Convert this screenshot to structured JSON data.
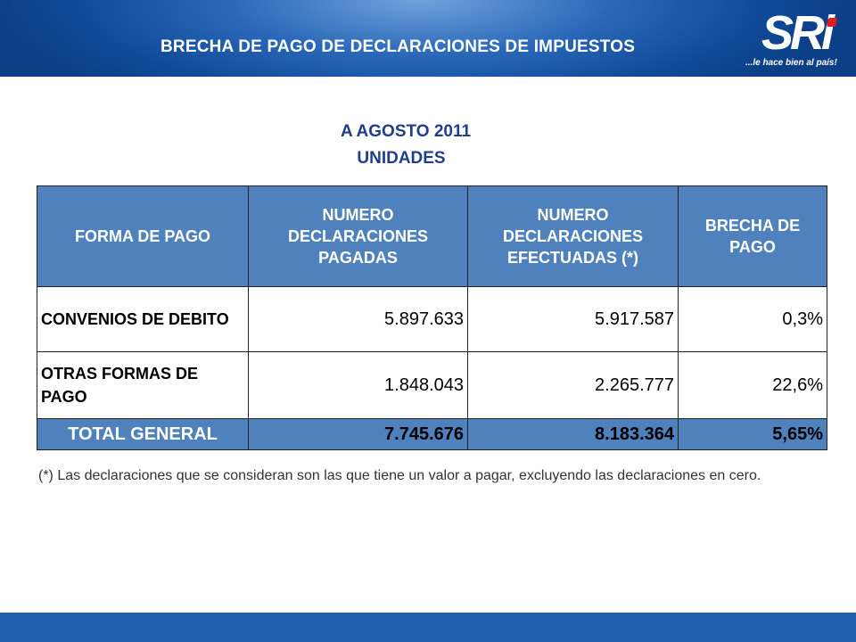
{
  "header": {
    "title": "BRECHA DE PAGO DE DECLARACIONES DE IMPUESTOS",
    "logo_text": "SRi",
    "logo_tagline": "...le hace bien al país!"
  },
  "subtitle": {
    "line1": "A AGOSTO 2011",
    "line2": "UNIDADES"
  },
  "table": {
    "headers": [
      "FORMA DE PAGO",
      "NUMERO DECLARACIONES PAGADAS",
      "NUMERO DECLARACIONES EFECTUADAS (*)",
      "BRECHA DE PAGO"
    ],
    "rows": [
      [
        "CONVENIOS DE DEBITO",
        "5.897.633",
        "5.917.587",
        "0,3%"
      ],
      [
        "OTRAS FORMAS DE PAGO",
        "1.848.043",
        "2.265.777",
        "22,6%"
      ]
    ],
    "total": [
      "TOTAL GENERAL",
      "7.745.676",
      "8.183.364",
      "5,65%"
    ]
  },
  "note": "(*) Las declaraciones que se consideran son las que tiene un valor a pagar, excluyendo las declaraciones en cero.",
  "colors": {
    "header_band": "#1f5fb0",
    "table_header": "#4f81bd",
    "subtitle": "#1f3e8c",
    "logo_dot": "#e02020"
  }
}
